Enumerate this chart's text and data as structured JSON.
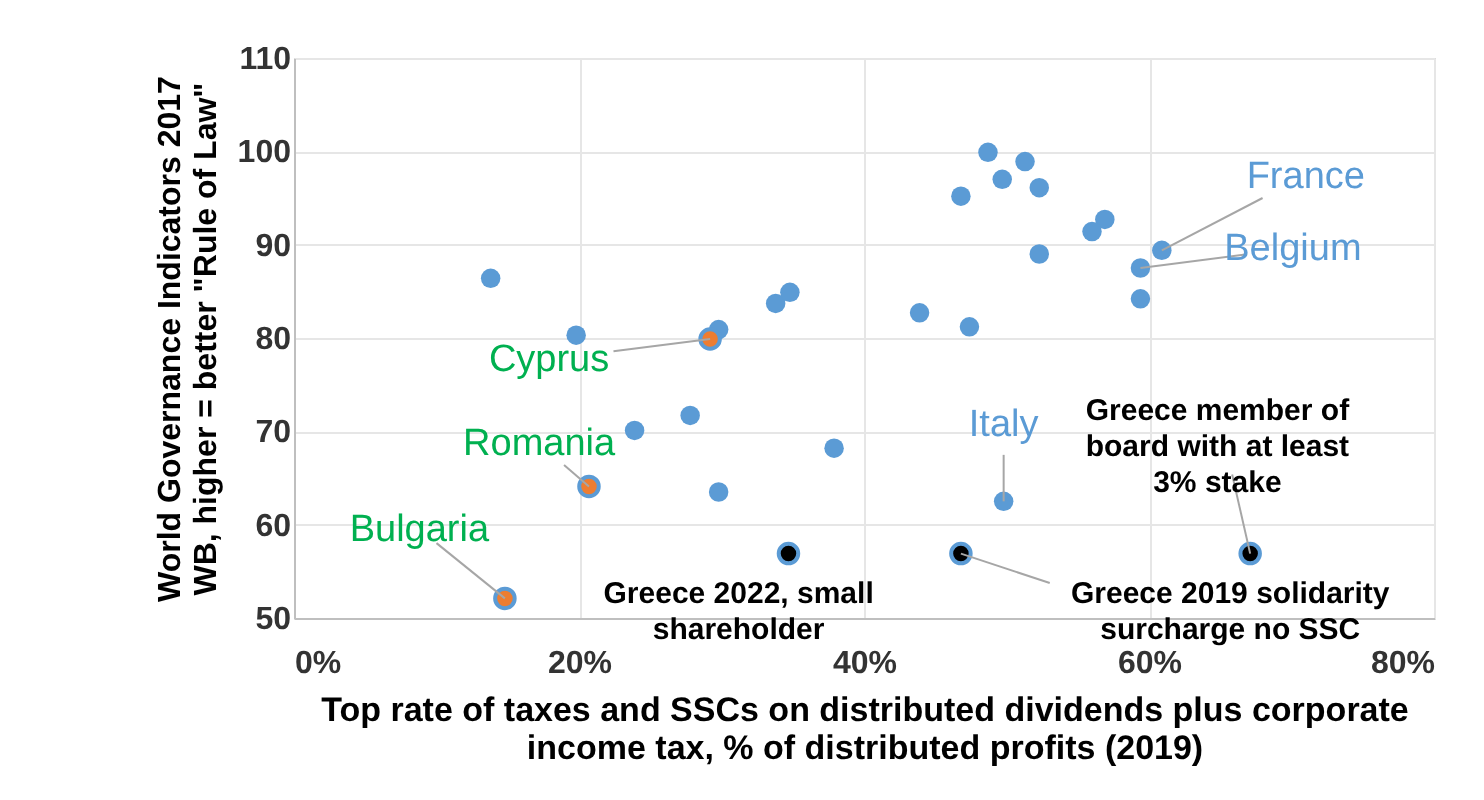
{
  "chart_data": {
    "type": "scatter",
    "xlabel": "Top rate of taxes and SSCs on distributed dividends plus corporate\nincome tax, % of distributed profits (2019)",
    "ylabel": "World Governance Indicators 2017\nWB, higher = better \"Rule of Law\"",
    "xlim": [
      0,
      80
    ],
    "ylim": [
      50,
      110
    ],
    "xticks": [
      {
        "value": 0,
        "label": "0%"
      },
      {
        "value": 20,
        "label": "20%"
      },
      {
        "value": 40,
        "label": "40%"
      },
      {
        "value": 60,
        "label": "60%"
      },
      {
        "value": 80,
        "label": "80%"
      }
    ],
    "yticks": [
      50,
      60,
      70,
      80,
      90,
      100,
      110
    ],
    "grid": true,
    "marker": "circle",
    "series": [
      {
        "color": "#5b9bd5",
        "x": [
          13.8,
          19.8,
          29.8,
          33.8,
          34.8,
          23.9,
          27.8,
          37.9,
          29.8,
          48.7,
          51.3,
          49.7,
          52.3,
          46.8,
          56.9,
          56.0,
          60.9,
          52.3,
          59.4,
          59.4,
          43.9,
          47.4,
          49.8
        ],
        "values": [
          86.4,
          80.3,
          80.9,
          83.7,
          84.9,
          70.1,
          71.7,
          68.2,
          63.5,
          99.9,
          98.9,
          97.0,
          96.1,
          95.2,
          92.7,
          91.4,
          89.4,
          89.0,
          87.5,
          84.2,
          82.7,
          81.2,
          62.5
        ]
      },
      {
        "color": "#ed7d31",
        "x": [
          29.2,
          20.7,
          14.8
        ],
        "values": [
          79.9,
          64.1,
          52.1
        ]
      },
      {
        "color": "#000000",
        "x": [
          34.7,
          46.8,
          67.1
        ],
        "values": [
          56.9,
          56.9,
          56.9
        ]
      }
    ],
    "annotations": [
      {
        "text": "France",
        "x": 60.9,
        "y": 89.4
      },
      {
        "text": "Belgium",
        "x": 59.4,
        "y": 87.5
      },
      {
        "text": "Italy",
        "x": 49.8,
        "y": 62.5
      },
      {
        "text": "Cyprus",
        "x": 29.2,
        "y": 79.9
      },
      {
        "text": "Romania",
        "x": 20.7,
        "y": 64.1
      },
      {
        "text": "Bulgaria",
        "x": 14.8,
        "y": 52.1
      },
      {
        "text": "Greece 2022, small\nshareholder",
        "x": 34.7,
        "y": 56.9
      },
      {
        "text": "Greece 2019 solidarity\nsurcharge no SSC",
        "x": 46.8,
        "y": 56.9
      },
      {
        "text": "Greece member of\nboard with at least\n3% stake",
        "x": 67.1,
        "y": 56.9
      }
    ]
  }
}
